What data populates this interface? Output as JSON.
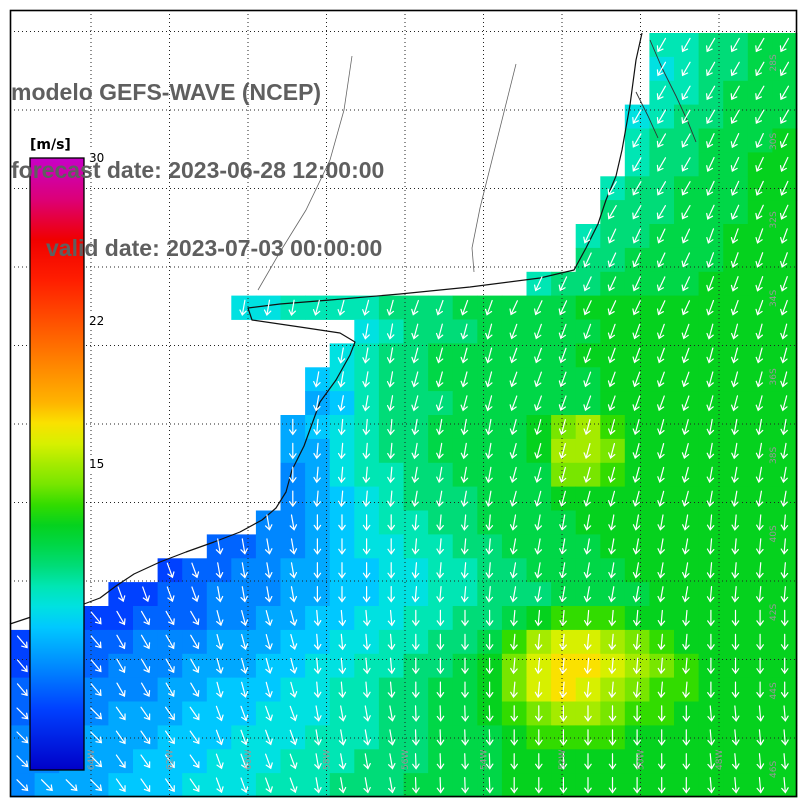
{
  "header": {
    "title": "modelo GEFS-WAVE (NCEP)",
    "forecast_line": "forecast date: 2023-06-28 12:00:00",
    "valid_line": "valid date: 2023-07-03 00:00:00"
  },
  "colorbar": {
    "label": "[m/s]",
    "ticks": [
      "30",
      "22",
      "15"
    ],
    "tick_values": [
      30,
      22,
      15
    ],
    "min": 0,
    "max": 30
  },
  "axes": {
    "lon_labels": [
      "64W",
      "62W",
      "60W",
      "58W",
      "56W",
      "54W",
      "52W",
      "50W",
      "48W"
    ],
    "lat_labels": [
      "28S",
      "30S",
      "32S",
      "34S",
      "36S",
      "38S",
      "40S",
      "42S",
      "44S",
      "46S"
    ]
  },
  "colors": {
    "title": "#5f5f5f",
    "land": "#ffffff",
    "grid": "#222222",
    "coast": "#111111",
    "river": "#666666",
    "axis_label": "#999999",
    "frame": "#000000",
    "tick_text": "#000000"
  },
  "chart_data": {
    "type": "heatmap",
    "title": "modelo GEFS-WAVE (NCEP)",
    "forecast_date": "2023-06-28 12:00:00",
    "valid_date": "2023-07-03 00:00:00",
    "variable": "wind speed with direction arrows over South American Atlantic coast",
    "units": "m/s",
    "value_range": [
      0,
      30
    ],
    "colorbar_ticks": [
      30,
      22,
      15
    ],
    "colormap_stops": [
      [
        0,
        "#0000c8"
      ],
      [
        3,
        "#0041ff"
      ],
      [
        5,
        "#0087ff"
      ],
      [
        7,
        "#00c8ff"
      ],
      [
        8,
        "#00e1e1"
      ],
      [
        9,
        "#00e6b4"
      ],
      [
        10,
        "#00dc78"
      ],
      [
        11,
        "#00d747"
      ],
      [
        12,
        "#05d21e"
      ],
      [
        13,
        "#32dc00"
      ],
      [
        14,
        "#78e600"
      ],
      [
        15,
        "#a5eb00"
      ],
      [
        16,
        "#d7f000"
      ],
      [
        17,
        "#fae100"
      ],
      [
        18,
        "#ffb400"
      ],
      [
        20,
        "#ff8200"
      ],
      [
        22,
        "#ff5000"
      ],
      [
        24,
        "#ff1e00"
      ],
      [
        26,
        "#f00000"
      ],
      [
        28,
        "#dc0078"
      ],
      [
        30,
        "#c800c8"
      ]
    ],
    "grid_encoding": "each string is one row of 32 cells west-to-east; '.' = land/no data; '0'-'9' = 0-9 m/s; 'A'-'K' = 10-20 m/s",
    "speed_rows": [
      "..........................99AABB",
      "..........................89AABB",
      "..........................99ABBB",
      ".........................89AABBB",
      ".........................9AABBBC",
      ".........................9AABBCC",
      "........................9AABBBCC",
      "........................AAABBBCC",
      ".......................9AABBBCCC",
      ".......................AABBBBCCC",
      ".....................9AABBBBCCCC",
      ".........889999AAABBBBBCCCCCCCCC",
      "..............89AAABBBBBCCCCCCCC",
      ".............89AABBBBBBCCCCCCCCC",
      "............789AABBBBBBBCCCCCCCC",
      "............679AAABBBBBBCCCCCCCC",
      "...........6789AABBBBCEFDCCCCCCC",
      "...........6689AABBBBCFFECCCCCCC",
      "...........56899AABBBBEEDCCCCCCC",
      "...........56789AAABBBCCCCCCCCCC",
      "..........5567899AABBBBCCCCCCCCC",
      "........4455678899AABBBBCCCCCCCC",
      "......3445566778899AABBBBCCCCCCC",
      "....334455566778899AAABBBBCCCCCC",
      "...334445566778899AABCDDDCCCCCCC",
      "33444555666778899AABDFGGFEDCCCCC",
      "3444555666778899AABCEGHHGFEDCCCC",
      "444555667778899AABBCEGHGFEDDCCCC",
      "445566677788899AABBCDEFFEDDCCCCC",
      "555666777888999AABBBCDDDDCCCCCCC",
      "55666777888999AAABBBCCCCCCCCCCCC",
      "5666777888999AAABBBBCCCCCCCCCCCC"
    ],
    "direction_deg_rows": [
      [
        200,
        200,
        200,
        205,
        205,
        210,
        210,
        210
      ],
      [
        195,
        195,
        200,
        200,
        205,
        210,
        210,
        205
      ],
      [
        185,
        190,
        190,
        195,
        200,
        205,
        205,
        200
      ],
      [
        175,
        180,
        185,
        190,
        195,
        200,
        200,
        195
      ],
      [
        160,
        170,
        180,
        185,
        190,
        195,
        195,
        190
      ],
      [
        150,
        160,
        170,
        180,
        185,
        190,
        190,
        185
      ],
      [
        140,
        150,
        165,
        175,
        180,
        185,
        185,
        180
      ],
      [
        135,
        145,
        160,
        170,
        178,
        180,
        180,
        175
      ]
    ],
    "arrow_color": "#ffffff",
    "legend_position": "left",
    "grid_on": true
  }
}
